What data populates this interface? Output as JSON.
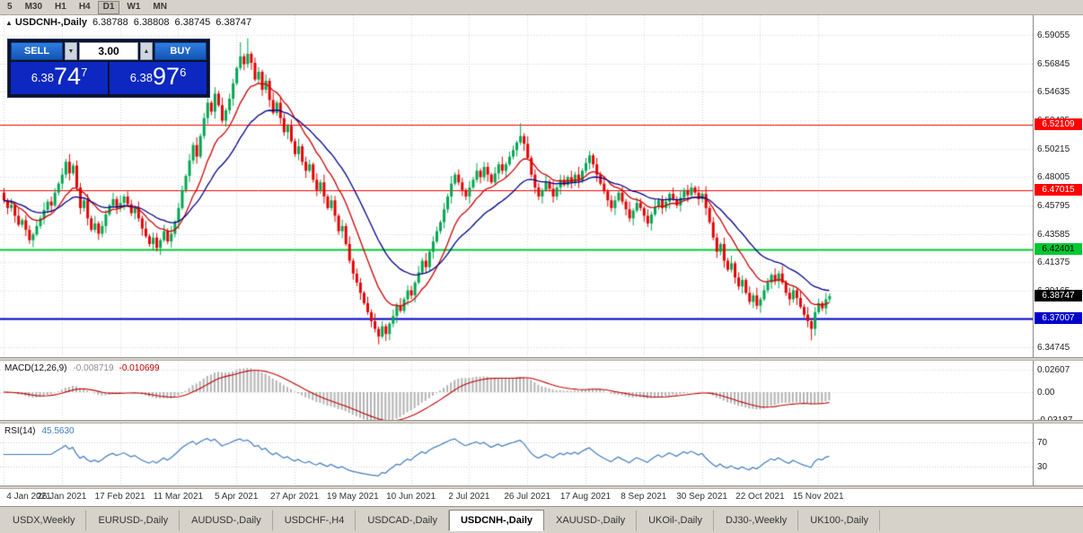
{
  "window": {
    "ohlc_readout": {
      "symbol": "USDCNH-,Daily",
      "open": "6.38788",
      "high": "6.38808",
      "low": "6.38745",
      "close": "6.38747"
    }
  },
  "icons": {
    "panel_toggle": "▲",
    "spin_up": "▲",
    "spin_down": "▼"
  },
  "toolbar": {
    "timeframes": [
      {
        "label": "5",
        "active": false
      },
      {
        "label": "M30",
        "active": false
      },
      {
        "label": "H1",
        "active": false
      },
      {
        "label": "H4",
        "active": false
      },
      {
        "label": "D1",
        "active": true
      },
      {
        "label": "W1",
        "active": false
      },
      {
        "label": "MN",
        "active": false
      }
    ]
  },
  "trade_panel": {
    "sell_label": "SELL",
    "buy_label": "BUY",
    "volume": "3.00",
    "sell_price": {
      "prefix": "6.38",
      "big": "74",
      "sup": "7"
    },
    "buy_price": {
      "prefix": "6.38",
      "big": "97",
      "sup": "6"
    }
  },
  "price_axis": {
    "ticks": [
      {
        "value": 6.59055,
        "label": "6.59055"
      },
      {
        "value": 6.56845,
        "label": "6.56845"
      },
      {
        "value": 6.54635,
        "label": "6.54635"
      },
      {
        "value": 6.52425,
        "label": "6.52425"
      },
      {
        "value": 6.50215,
        "label": "6.50215"
      },
      {
        "value": 6.48005,
        "label": "6.48005"
      },
      {
        "value": 6.45795,
        "label": "6.45795"
      },
      {
        "value": 6.43585,
        "label": "6.43585"
      },
      {
        "value": 6.41375,
        "label": "6.41375"
      },
      {
        "value": 6.39165,
        "label": "6.39165"
      },
      {
        "value": 6.36955,
        "label": "6.36955"
      },
      {
        "value": 6.34745,
        "label": "6.34745"
      }
    ],
    "line_labels": [
      {
        "value": 6.52109,
        "label": "6.52109",
        "bg": "#ff0000",
        "fg": "#ffffff"
      },
      {
        "value": 6.47015,
        "label": "6.47015",
        "bg": "#ff0000",
        "fg": "#ffffff"
      },
      {
        "value": 6.42401,
        "label": "6.42401",
        "bg": "#00c832",
        "fg": "#000000"
      },
      {
        "value": 6.38747,
        "label": "6.38747",
        "bg": "#000000",
        "fg": "#ffffff"
      },
      {
        "value": 6.37007,
        "label": "6.37007",
        "bg": "#0000c8",
        "fg": "#ffffff"
      }
    ]
  },
  "chart_data": {
    "type": "candlestick",
    "symbol": "USDCNH",
    "timeframe": "Daily",
    "ylim": [
      6.34,
      6.606
    ],
    "up_color": "#00a651",
    "down_color": "#e60000",
    "grid_color": "#d4d4d4",
    "first_open": 6.468,
    "closes": [
      6.462,
      6.456,
      6.4585,
      6.45,
      6.443,
      6.4465,
      6.439,
      6.431,
      6.4355,
      6.442,
      6.448,
      6.4545,
      6.461,
      6.458,
      6.468,
      6.475,
      6.482,
      6.492,
      6.483,
      6.489,
      6.472,
      6.456,
      6.462,
      6.448,
      6.439,
      6.444,
      6.436,
      6.442,
      6.451,
      6.458,
      6.463,
      6.456,
      6.46,
      6.465,
      6.459,
      6.452,
      6.456,
      6.448,
      6.44,
      6.434,
      6.428,
      6.433,
      6.425,
      6.431,
      6.438,
      6.43,
      6.436,
      6.445,
      6.456,
      6.47,
      6.481,
      6.493,
      6.505,
      6.496,
      6.512,
      6.526,
      6.538,
      6.531,
      6.545,
      6.536,
      6.524,
      6.532,
      6.541,
      6.553,
      6.565,
      6.574,
      6.568,
      6.576,
      6.569,
      6.556,
      6.562,
      6.548,
      6.555,
      6.54,
      6.53,
      6.538,
      6.526,
      6.515,
      6.52,
      6.508,
      6.498,
      6.504,
      6.492,
      6.485,
      6.49,
      6.478,
      6.47,
      6.476,
      6.465,
      6.456,
      6.462,
      6.45,
      6.438,
      6.442,
      6.428,
      6.415,
      6.405,
      6.398,
      6.39,
      6.382,
      6.375,
      6.368,
      6.362,
      6.356,
      6.364,
      6.358,
      6.366,
      6.372,
      6.38,
      6.376,
      6.385,
      6.392,
      6.388,
      6.398,
      6.406,
      6.415,
      6.41,
      6.422,
      6.43,
      6.438,
      6.445,
      6.455,
      6.465,
      6.475,
      6.482,
      6.476,
      6.47,
      6.465,
      6.472,
      6.478,
      6.485,
      6.48,
      6.488,
      6.482,
      6.476,
      6.483,
      6.49,
      6.485,
      6.49,
      6.496,
      6.501,
      6.507,
      6.512,
      6.506,
      6.495,
      6.482,
      6.472,
      6.465,
      6.47,
      6.476,
      6.471,
      6.465,
      6.472,
      6.478,
      6.474,
      6.48,
      6.476,
      6.482,
      6.477,
      6.485,
      6.491,
      6.497,
      6.49,
      6.482,
      6.475,
      6.469,
      6.462,
      6.456,
      6.462,
      6.468,
      6.461,
      6.455,
      6.448,
      6.454,
      6.46,
      6.456,
      6.45,
      6.444,
      6.451,
      6.457,
      6.462,
      6.456,
      6.461,
      6.467,
      6.463,
      6.458,
      6.464,
      6.47,
      6.466,
      6.472,
      6.468,
      6.463,
      6.467,
      6.456,
      6.445,
      6.433,
      6.422,
      6.428,
      6.415,
      6.408,
      6.413,
      6.402,
      6.395,
      6.4,
      6.39,
      6.383,
      6.388,
      6.38,
      6.385,
      6.392,
      6.398,
      6.404,
      6.399,
      6.405,
      6.398,
      6.39,
      6.385,
      6.392,
      6.386,
      6.379,
      6.373,
      6.368,
      6.362,
      6.375,
      6.382,
      6.378,
      6.385,
      6.3875
    ],
    "wick_up_pattern": [
      0.0035,
      0.0015,
      0.005,
      0.0022,
      0.006,
      0.0018,
      0.004
    ],
    "wick_dn_pattern": [
      0.0022,
      0.0048,
      0.0028,
      0.0055,
      0.0015
    ],
    "wick_overrides": {
      "65": [
        0.011,
        0.002
      ],
      "67": [
        0.012,
        0.003
      ],
      "103": [
        0.002,
        0.006
      ],
      "105": [
        0.002,
        0.0055
      ],
      "142": [
        0.01,
        0.002
      ],
      "222": [
        0.002,
        0.009
      ]
    },
    "hlines": [
      {
        "price": 6.52109,
        "color": "#ff0000",
        "width": 1
      },
      {
        "price": 6.47015,
        "color": "#ff0000",
        "width": 1
      },
      {
        "price": 6.42401,
        "color": "#00c832",
        "width": 2
      },
      {
        "price": 6.37007,
        "color": "#0000c8",
        "width": 2
      }
    ],
    "moving_averages": [
      {
        "type": "ema",
        "period": 12,
        "color": "#cc0000"
      },
      {
        "type": "ema",
        "period": 26,
        "color": "#000089"
      }
    ],
    "x_labels": [
      {
        "label": "4 Jan 2021",
        "index": 0
      },
      {
        "label": "26 Jan 2021",
        "index": 16
      },
      {
        "label": "17 Feb 2021",
        "index": 32
      },
      {
        "label": "11 Mar 2021",
        "index": 48
      },
      {
        "label": "5 Apr 2021",
        "index": 64
      },
      {
        "label": "27 Apr 2021",
        "index": 80
      },
      {
        "label": "19 May 2021",
        "index": 96
      },
      {
        "label": "10 Jun 2021",
        "index": 112
      },
      {
        "label": "2 Jul 2021",
        "index": 128
      },
      {
        "label": "26 Jul 2021",
        "index": 144
      },
      {
        "label": "17 Aug 2021",
        "index": 160
      },
      {
        "label": "8 Sep 2021",
        "index": 176
      },
      {
        "label": "30 Sep 2021",
        "index": 192
      },
      {
        "label": "22 Oct 2021",
        "index": 208
      },
      {
        "label": "15 Nov 2021",
        "index": 224
      }
    ],
    "macd": {
      "label": "MACD(12,26,9)",
      "value_main": "-0.008719",
      "value_signal": "-0.010699",
      "fast": 12,
      "slow": 26,
      "signal": 9,
      "range": [
        -0.0323,
        0.0365
      ],
      "axis_ticks": [
        {
          "value": 0.02607,
          "label": "0.02607"
        },
        {
          "value": 0,
          "label": "0.00"
        },
        {
          "value": -0.03187,
          "label": "-0.03187"
        }
      ],
      "hist_color": "#b2b2b2",
      "signal_color": "#c00000"
    },
    "rsi": {
      "label": "RSI(14)",
      "value": "45.5630",
      "period": 14,
      "range": [
        0,
        100
      ],
      "levels": [
        70,
        30
      ],
      "axis_ticks": [
        {
          "value": 70,
          "label": "70"
        },
        {
          "value": 30,
          "label": "30"
        }
      ],
      "line_color": "#3e7bbf",
      "level_color": "#c8c8c8"
    }
  },
  "tabs": [
    {
      "label": "USDX,Weekly",
      "active": false
    },
    {
      "label": "EURUSD-,Daily",
      "active": false
    },
    {
      "label": "AUDUSD-,Daily",
      "active": false
    },
    {
      "label": "USDCHF-,H4",
      "active": false
    },
    {
      "label": "USDCAD-,Daily",
      "active": false
    },
    {
      "label": "USDCNH-,Daily",
      "active": true
    },
    {
      "label": "XAUUSD-,Daily",
      "active": false
    },
    {
      "label": "UKOil-,Daily",
      "active": false
    },
    {
      "label": "DJ30-,Weekly",
      "active": false
    },
    {
      "label": "UK100-,Daily",
      "active": false
    }
  ]
}
